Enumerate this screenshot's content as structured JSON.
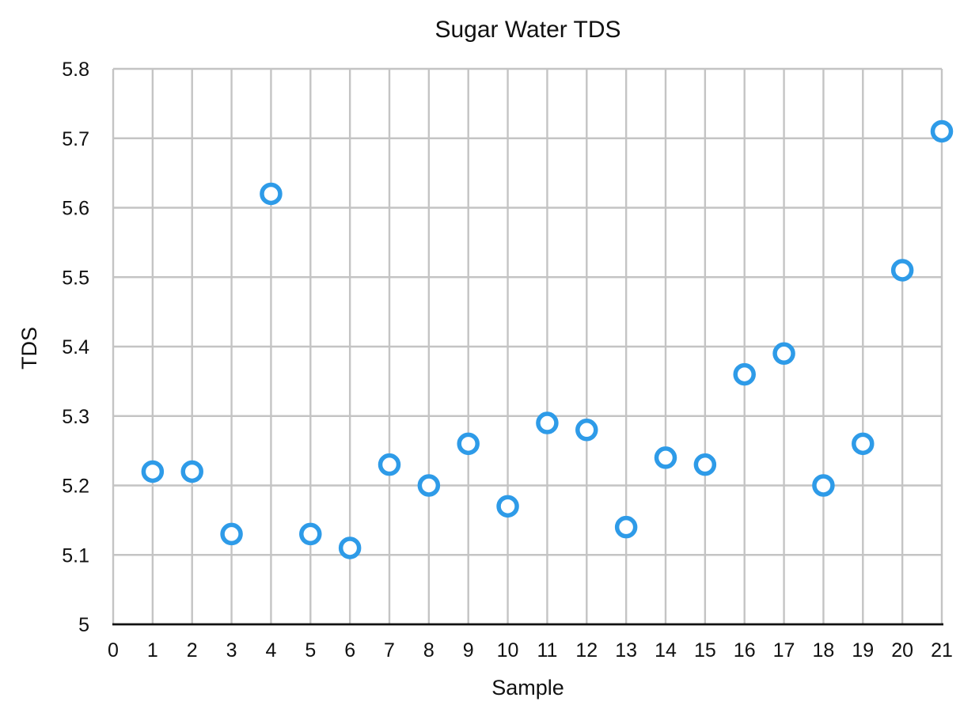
{
  "chart_data": {
    "type": "scatter",
    "title": "Sugar Water TDS",
    "xlabel": "Sample",
    "ylabel": "TDS",
    "xlim": [
      0,
      21
    ],
    "ylim": [
      5,
      5.8
    ],
    "x_ticks": [
      "0",
      "1",
      "2",
      "3",
      "4",
      "5",
      "6",
      "7",
      "8",
      "9",
      "10",
      "11",
      "12",
      "13",
      "14",
      "15",
      "16",
      "17",
      "18",
      "19",
      "20",
      "21"
    ],
    "y_ticks": [
      "5",
      "5.1",
      "5.2",
      "5.3",
      "5.4",
      "5.5",
      "5.6",
      "5.7",
      "5.8"
    ],
    "grid": true,
    "legend": "none",
    "marker_color": "#2E9BE8",
    "series": [
      {
        "x": [
          1,
          2,
          3,
          4,
          5,
          6,
          7,
          8,
          9,
          10,
          11,
          12,
          13,
          14,
          15,
          16,
          17,
          18,
          19,
          20,
          21
        ],
        "y": [
          5.22,
          5.22,
          5.13,
          5.62,
          5.13,
          5.11,
          5.23,
          5.2,
          5.26,
          5.17,
          5.29,
          5.28,
          5.14,
          5.24,
          5.23,
          5.36,
          5.39,
          5.2,
          5.26,
          5.51,
          5.71
        ]
      }
    ]
  }
}
